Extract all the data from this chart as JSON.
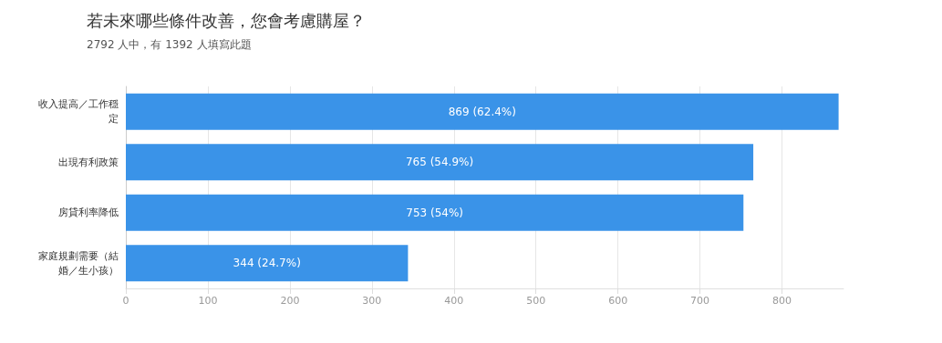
{
  "chart_data": {
    "type": "bar",
    "orientation": "horizontal",
    "title": "若未來哪些條件改善，您會考慮購屋？",
    "subtitle": "2792 人中，有 1392 人填寫此題",
    "categories": [
      "收入提高／工作穩定",
      "出現有利政策",
      "房貸利率降低",
      "家庭規劃需要（結婚／生小孩）"
    ],
    "values": [
      869,
      765,
      753,
      344
    ],
    "value_labels": [
      "869 (62.4%)",
      "765 (54.9%)",
      "753 (54%)",
      "344 (24.7%)"
    ],
    "color": "#3a93e8",
    "xlim": [
      0,
      875
    ],
    "xticks": [
      0,
      100,
      200,
      300,
      400,
      500,
      600,
      700,
      800
    ],
    "grid": "x"
  }
}
